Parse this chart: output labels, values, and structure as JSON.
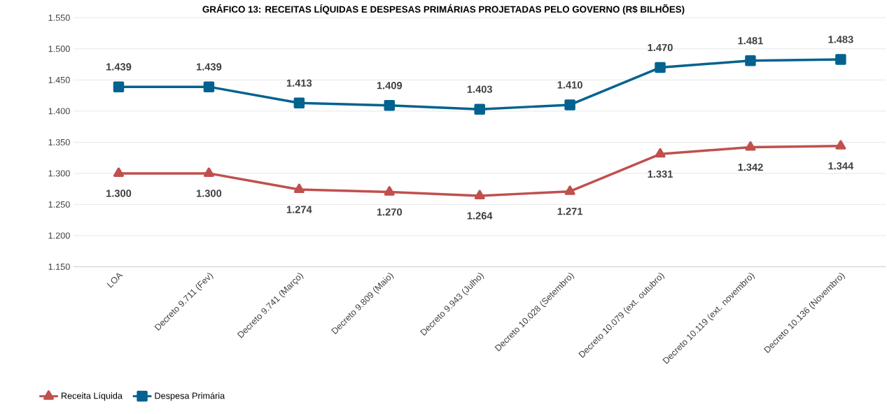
{
  "chart_data": {
    "type": "line",
    "title": "GRÁFICO 13: RECEITAS LÍQUIDAS E DESPESAS PRIMÁRIAS PROJETADAS PELO GOVERNO (R$ BILHÕES)",
    "categories": [
      "LOA",
      "Decreto 9.711 (Fev)",
      "Decreto 9.741 (Março)",
      "Decreto 9.809 (Maio)",
      "Decreto 9.943 (Julho)",
      "Decreto 10.028 (Setembro)",
      "Decreto 10.079 (ext. outubro)",
      "Decreto 10.119 (ext. novembro)",
      "Decreto 10.136 (Novembro)"
    ],
    "series": [
      {
        "name": "Receita Líquida",
        "color": "#c0504d",
        "marker": "triangle",
        "values": [
          1300,
          1300,
          1274,
          1270,
          1264,
          1271,
          1331,
          1342,
          1344
        ],
        "value_labels": [
          "1.300",
          "1.300",
          "1.274",
          "1.270",
          "1.264",
          "1.271",
          "1.331",
          "1.342",
          "1.344"
        ]
      },
      {
        "name": "Despesa Primária",
        "color": "#03628f",
        "marker": "square",
        "values": [
          1439,
          1439,
          1413,
          1409,
          1403,
          1410,
          1470,
          1481,
          1483
        ],
        "value_labels": [
          "1.439",
          "1.439",
          "1.413",
          "1.409",
          "1.403",
          "1.410",
          "1.470",
          "1.481",
          "1.483"
        ]
      }
    ],
    "ylim": [
      1150,
      1550
    ],
    "yticks": [
      {
        "value": 1150,
        "label": "1.150"
      },
      {
        "value": 1200,
        "label": "1.200"
      },
      {
        "value": 1250,
        "label": "1.250"
      },
      {
        "value": 1300,
        "label": "1.300"
      },
      {
        "value": 1350,
        "label": "1.350"
      },
      {
        "value": 1400,
        "label": "1.400"
      },
      {
        "value": 1450,
        "label": "1.450"
      },
      {
        "value": 1500,
        "label": "1.500"
      },
      {
        "value": 1550,
        "label": "1.550"
      }
    ],
    "grid": "y",
    "legend": "bottom left",
    "line_style": "solid"
  }
}
